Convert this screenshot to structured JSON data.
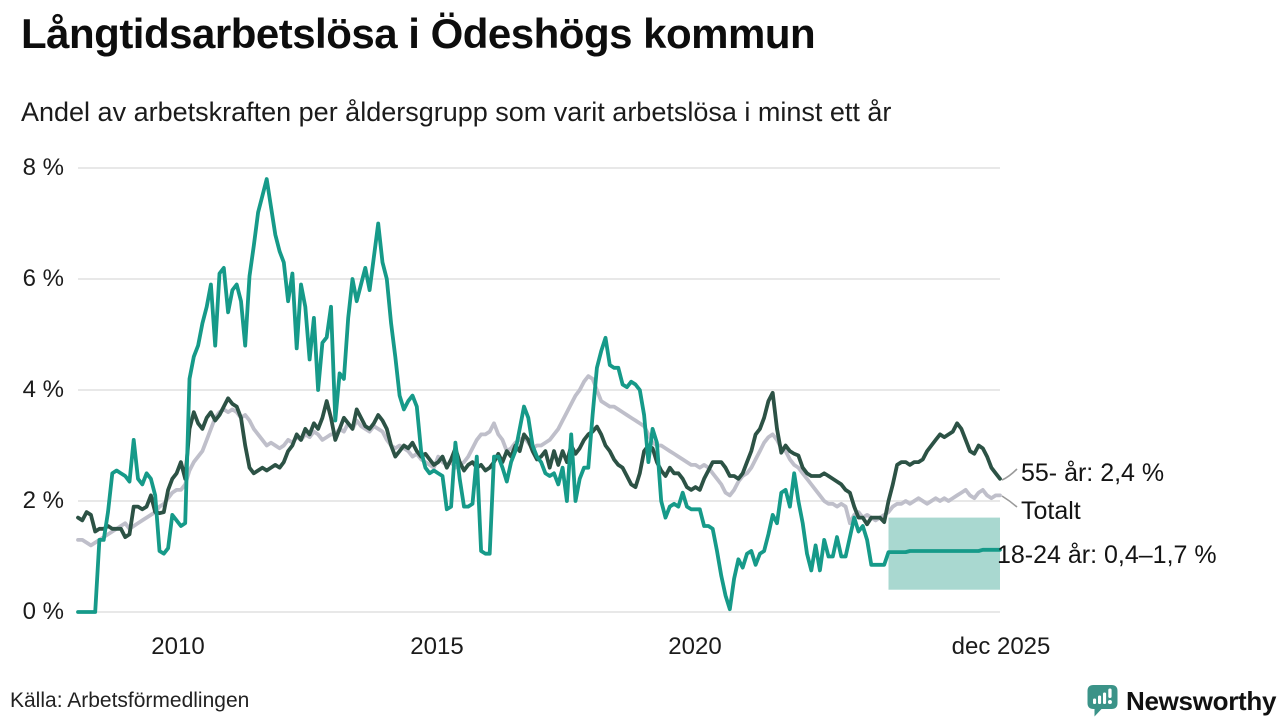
{
  "title": "Långtidsarbetslösa i Ödeshögs kommun",
  "subtitle": "Andel av arbetskraften per åldersgrupp som varit arbetslösa i minst ett år",
  "source": "Källa: Arbetsförmedlingen",
  "branding": {
    "name": "Newsworthy",
    "color": "#3b9388"
  },
  "colors": {
    "grid": "#e5e5e5",
    "band": "#a9d8d0",
    "teal_line": "#169a89",
    "dark_line": "#2c5245",
    "gray_line": "#bfbfca",
    "leader": "#9a9a9a",
    "text": "#141414"
  },
  "annotations": [
    {
      "label": "55- år: 2,4 %"
    },
    {
      "label": "Totalt"
    },
    {
      "label": "18-24 år: 0,4–1,7 %"
    }
  ],
  "chart_data": {
    "type": "line",
    "title": "Långtidsarbetslösa i Ödeshögs kommun",
    "subtitle": "Andel av arbetskraften per åldersgrupp som varit arbetslösa i minst ett år",
    "x_start": "2008-01",
    "x_end": "2025-12",
    "frequency": "monthly",
    "xlabel": "",
    "ylabel": "",
    "ylim": [
      0,
      8
    ],
    "grid": "horizontal",
    "legend_position": "right-annotations",
    "y_tick_labels": [
      "0 %",
      "2 %",
      "4 %",
      "6 %",
      "8 %"
    ],
    "x_tick_labels": [
      "2010",
      "2015",
      "2020",
      "dec 2025"
    ],
    "series": [
      {
        "name": "55- år",
        "color": "#2c5245",
        "latest_label": "55- år: 2,4 %",
        "values": [
          1.7,
          1.65,
          1.8,
          1.75,
          1.45,
          1.5,
          1.5,
          1.55,
          1.5,
          1.5,
          1.5,
          1.35,
          1.4,
          1.9,
          1.9,
          1.85,
          1.9,
          2.1,
          1.8,
          1.78,
          1.8,
          2.2,
          2.4,
          2.5,
          2.7,
          2.4,
          3.3,
          3.6,
          3.4,
          3.3,
          3.5,
          3.6,
          3.45,
          3.55,
          3.7,
          3.85,
          3.75,
          3.7,
          3.5,
          3.0,
          2.6,
          2.5,
          2.55,
          2.6,
          2.55,
          2.6,
          2.65,
          2.6,
          2.7,
          2.9,
          3.0,
          3.2,
          3.1,
          3.3,
          3.2,
          3.4,
          3.3,
          3.5,
          3.8,
          3.5,
          3.1,
          3.3,
          3.5,
          3.4,
          3.3,
          3.65,
          3.5,
          3.35,
          3.3,
          3.4,
          3.55,
          3.45,
          3.3,
          3.0,
          2.8,
          2.9,
          3.0,
          2.95,
          3.05,
          2.9,
          2.8,
          2.85,
          2.75,
          2.65,
          2.7,
          2.8,
          2.6,
          2.75,
          2.95,
          2.7,
          2.55,
          2.65,
          2.7,
          2.6,
          2.65,
          2.55,
          2.6,
          2.7,
          2.85,
          2.7,
          2.9,
          2.8,
          3.0,
          2.9,
          3.2,
          3.1,
          2.9,
          2.75,
          2.8,
          2.9,
          2.6,
          2.9,
          2.65,
          2.9,
          2.7,
          3.0,
          2.85,
          2.95,
          3.1,
          3.2,
          3.25,
          3.34,
          3.2,
          3.0,
          2.9,
          2.75,
          2.65,
          2.6,
          2.45,
          2.3,
          2.25,
          2.5,
          2.9,
          3.0,
          2.95,
          2.7,
          2.55,
          2.45,
          2.6,
          2.5,
          2.5,
          2.4,
          2.25,
          2.2,
          2.25,
          2.2,
          2.4,
          2.55,
          2.7,
          2.7,
          2.7,
          2.6,
          2.45,
          2.45,
          2.4,
          2.5,
          2.7,
          2.9,
          3.2,
          3.3,
          3.5,
          3.8,
          3.95,
          3.3,
          2.87,
          3.0,
          2.9,
          2.85,
          2.82,
          2.6,
          2.5,
          2.45,
          2.45,
          2.45,
          2.5,
          2.45,
          2.4,
          2.35,
          2.3,
          2.2,
          2.15,
          1.9,
          1.7,
          1.7,
          1.58,
          1.7,
          1.7,
          1.7,
          1.62,
          2.0,
          2.3,
          2.65,
          2.7,
          2.7,
          2.65,
          2.7,
          2.7,
          2.75,
          2.9,
          3.0,
          3.1,
          3.2,
          3.15,
          3.2,
          3.25,
          3.4,
          3.3,
          3.1,
          2.9,
          2.85,
          3.0,
          2.95,
          2.8,
          2.6,
          2.5,
          2.4
        ]
      },
      {
        "name": "Totalt",
        "color": "#bfbfca",
        "values": [
          1.3,
          1.3,
          1.25,
          1.2,
          1.25,
          1.3,
          1.35,
          1.4,
          1.45,
          1.5,
          1.55,
          1.6,
          1.5,
          1.55,
          1.6,
          1.65,
          1.7,
          1.75,
          1.8,
          1.9,
          1.95,
          2.05,
          2.15,
          2.2,
          2.2,
          2.3,
          2.55,
          2.7,
          2.8,
          2.9,
          3.1,
          3.3,
          3.5,
          3.6,
          3.65,
          3.6,
          3.65,
          3.6,
          3.5,
          3.55,
          3.45,
          3.3,
          3.2,
          3.1,
          3.0,
          3.05,
          3.0,
          2.95,
          3.0,
          3.1,
          3.05,
          3.15,
          3.1,
          3.2,
          3.15,
          3.25,
          3.2,
          3.1,
          3.15,
          3.2,
          3.2,
          3.3,
          3.25,
          3.4,
          3.3,
          3.45,
          3.35,
          3.3,
          3.25,
          3.35,
          3.3,
          3.25,
          3.1,
          3.0,
          2.95,
          3.0,
          2.95,
          2.9,
          2.8,
          2.85,
          2.75,
          2.7,
          2.65,
          2.6,
          2.8,
          2.7,
          2.65,
          2.7,
          2.6,
          2.65,
          2.7,
          2.8,
          2.95,
          3.1,
          3.2,
          3.2,
          3.25,
          3.4,
          3.2,
          3.1,
          2.9,
          2.95,
          3.05,
          3.1,
          3.15,
          3.05,
          2.95,
          3.0,
          3.0,
          3.05,
          3.1,
          3.2,
          3.3,
          3.45,
          3.6,
          3.75,
          3.9,
          4.0,
          4.15,
          4.25,
          4.2,
          4.0,
          3.8,
          3.75,
          3.7,
          3.7,
          3.65,
          3.6,
          3.55,
          3.5,
          3.45,
          3.4,
          3.35,
          3.2,
          3.05,
          3.0,
          3.0,
          2.95,
          2.9,
          2.85,
          2.8,
          2.75,
          2.7,
          2.65,
          2.65,
          2.6,
          2.65,
          2.6,
          2.5,
          2.4,
          2.3,
          2.15,
          2.1,
          2.2,
          2.35,
          2.45,
          2.5,
          2.6,
          2.75,
          2.9,
          3.05,
          3.15,
          3.2,
          3.1,
          2.95,
          2.9,
          2.75,
          2.65,
          2.6,
          2.5,
          2.4,
          2.3,
          2.2,
          2.1,
          2.0,
          1.95,
          1.95,
          1.9,
          1.95,
          1.9,
          1.6,
          1.75,
          1.8,
          1.7,
          1.75,
          1.7,
          1.65,
          1.7,
          1.75,
          1.8,
          1.9,
          1.95,
          1.95,
          2.0,
          1.95,
          2.0,
          2.05,
          2.0,
          1.95,
          2.0,
          2.05,
          2.0,
          2.05,
          2.0,
          2.05,
          2.1,
          2.15,
          2.2,
          2.1,
          2.05,
          2.15,
          2.2,
          2.1,
          2.05,
          2.1,
          2.1
        ]
      },
      {
        "name": "18-24 år",
        "color": "#169a89",
        "latest_label": "18-24 år: 0,4–1,7 %",
        "uncertainty_band": {
          "start_index": 189,
          "low": 0.4,
          "high": 1.7
        },
        "values": [
          0,
          0,
          0,
          0,
          0,
          1.3,
          1.3,
          1.8,
          2.5,
          2.55,
          2.5,
          2.45,
          2.35,
          3.1,
          2.4,
          2.3,
          2.5,
          2.4,
          2.1,
          1.1,
          1.05,
          1.15,
          1.75,
          1.65,
          1.55,
          1.6,
          4.2,
          4.6,
          4.8,
          5.2,
          5.5,
          5.9,
          4.8,
          6.1,
          6.2,
          5.4,
          5.8,
          5.9,
          5.6,
          4.8,
          6.05,
          6.6,
          7.2,
          7.5,
          7.8,
          7.3,
          6.8,
          6.5,
          6.3,
          5.6,
          6.1,
          4.75,
          5.9,
          5.5,
          4.55,
          5.3,
          4.0,
          4.85,
          4.95,
          5.5,
          3.45,
          4.3,
          4.2,
          5.3,
          6.0,
          5.6,
          5.9,
          6.2,
          5.8,
          6.4,
          7.0,
          6.3,
          6.0,
          5.2,
          4.6,
          3.9,
          3.65,
          3.8,
          3.9,
          3.7,
          2.9,
          2.6,
          2.5,
          2.55,
          2.5,
          2.45,
          1.85,
          1.9,
          3.05,
          2.4,
          1.9,
          1.9,
          1.95,
          2.8,
          1.1,
          1.05,
          1.05,
          2.8,
          2.8,
          2.6,
          2.35,
          2.7,
          2.9,
          3.3,
          3.7,
          3.5,
          3.0,
          2.8,
          2.7,
          2.5,
          2.45,
          2.5,
          2.3,
          2.6,
          2.0,
          3.2,
          2.0,
          2.4,
          2.6,
          2.6,
          3.55,
          4.4,
          4.7,
          4.94,
          4.45,
          4.4,
          4.4,
          4.1,
          4.05,
          4.15,
          4.1,
          4.0,
          3.55,
          2.7,
          3.3,
          3.05,
          2.0,
          1.7,
          1.9,
          1.95,
          1.9,
          2.15,
          1.9,
          1.85,
          1.85,
          1.85,
          1.55,
          1.55,
          1.5,
          1.1,
          0.65,
          0.3,
          0.05,
          0.6,
          0.95,
          0.8,
          1.05,
          1.1,
          0.85,
          1.05,
          1.1,
          1.4,
          1.75,
          1.6,
          2.15,
          2.2,
          1.9,
          2.5,
          2.0,
          1.6,
          1.05,
          0.75,
          1.2,
          0.75,
          1.3,
          1.0,
          1.0,
          1.35,
          1.0,
          1.0,
          1.35,
          1.7,
          1.45,
          1.55,
          1.3,
          0.85,
          0.85,
          0.85,
          0.85,
          1.08,
          1.08,
          1.08,
          1.08,
          1.08,
          1.1,
          1.1,
          1.1,
          1.1,
          1.1,
          1.1,
          1.1,
          1.1,
          1.1,
          1.1,
          1.1,
          1.1,
          1.1,
          1.1,
          1.1,
          1.1,
          1.1,
          1.12,
          1.12,
          1.12,
          1.12,
          1.12
        ]
      }
    ]
  }
}
